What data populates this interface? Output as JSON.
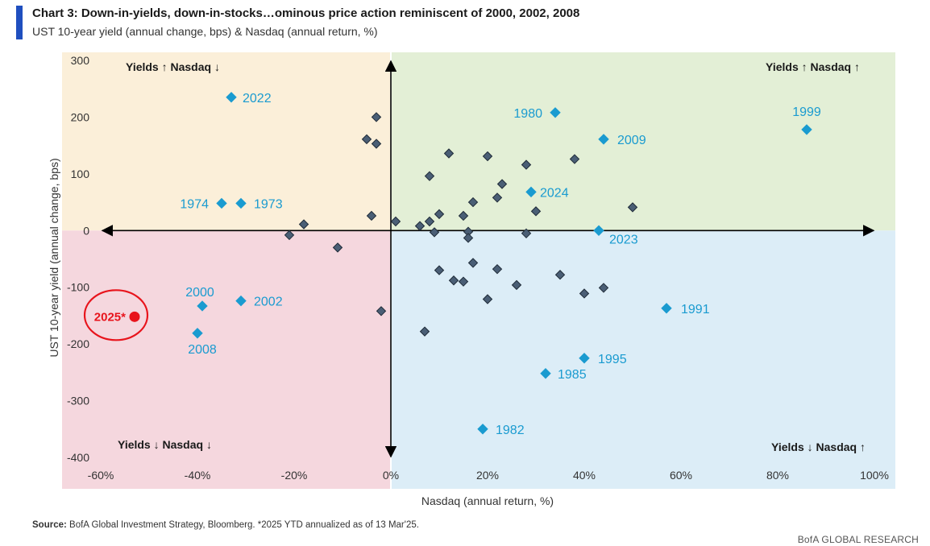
{
  "header": {
    "title": "Chart 3: Down-in-yields, down-in-stocks…ominous price action reminiscent of 2000, 2002, 2008",
    "subtitle": "UST 10-year yield (annual change, bps) & Nasdaq (annual return, %)"
  },
  "footer": {
    "source_label": "Source:",
    "source_text": " BofA Global Investment Strategy, Bloomberg. *2025 YTD annualized as of 13 Mar'25.",
    "brand": "BofA GLOBAL RESEARCH"
  },
  "colors": {
    "q_top_left": "#fbefd9",
    "q_top_right": "#e3efd6",
    "q_bottom_left": "#f5d7de",
    "q_bottom_right": "#dcedf7",
    "labeled_point": "#1a9bd0",
    "unlabeled_point": "#4a5e75",
    "highlight": "#e8141c",
    "axis": "#000000"
  },
  "chart_data": {
    "type": "scatter",
    "title": "Chart 3: Down-in-yields, down-in-stocks…ominous price action reminiscent of 2000, 2002, 2008",
    "xlabel": "Nasdaq (annual return, %)",
    "ylabel": "UST 10-year yield (annual change, bps)",
    "xlim": [
      -60,
      100
    ],
    "ylim": [
      -400,
      300
    ],
    "x_ticks": [
      -60,
      -40,
      -20,
      0,
      20,
      40,
      60,
      80,
      100
    ],
    "x_tick_labels": [
      "-60%",
      "-40%",
      "-20%",
      "0%",
      "20%",
      "40%",
      "60%",
      "80%",
      "100%"
    ],
    "y_ticks": [
      300,
      200,
      100,
      0,
      -100,
      -200,
      -300,
      -400
    ],
    "y_tick_labels": [
      "300",
      "200",
      "100",
      "0",
      "-100",
      "-200",
      "-300",
      "-400"
    ],
    "quadrant_labels": {
      "top_left": "Yields ↑ Nasdaq ↓",
      "top_right": "Yields ↑ Nasdaq ↑",
      "bottom_left": "Yields ↓ Nasdaq ↓",
      "bottom_right": "Yields ↓ Nasdaq ↑"
    },
    "labeled_points": [
      {
        "label": "2022",
        "x": -33,
        "y": 235
      },
      {
        "label": "1974",
        "x": -35,
        "y": 48
      },
      {
        "label": "1973",
        "x": -31,
        "y": 48
      },
      {
        "label": "2000",
        "x": -39,
        "y": -133
      },
      {
        "label": "2002",
        "x": -31,
        "y": -124
      },
      {
        "label": "2008",
        "x": -40,
        "y": -181
      },
      {
        "label": "1980",
        "x": 34,
        "y": 208
      },
      {
        "label": "2009",
        "x": 44,
        "y": 161
      },
      {
        "label": "1999",
        "x": 86,
        "y": 178
      },
      {
        "label": "2024",
        "x": 29,
        "y": 68
      },
      {
        "label": "2023",
        "x": 43,
        "y": 0
      },
      {
        "label": "1991",
        "x": 57,
        "y": -137
      },
      {
        "label": "1995",
        "x": 40,
        "y": -225
      },
      {
        "label": "1985",
        "x": 32,
        "y": -252
      },
      {
        "label": "1982",
        "x": 19,
        "y": -350
      }
    ],
    "highlight_point": {
      "label": "2025*",
      "x": -53,
      "y": -152
    },
    "unlabeled_points": [
      {
        "x": -3,
        "y": 200
      },
      {
        "x": -5,
        "y": 161
      },
      {
        "x": -3,
        "y": 153
      },
      {
        "x": -4,
        "y": 26
      },
      {
        "x": -18,
        "y": 11
      },
      {
        "x": -21,
        "y": -8
      },
      {
        "x": -11,
        "y": -30
      },
      {
        "x": -2,
        "y": -142
      },
      {
        "x": 1,
        "y": 16
      },
      {
        "x": 6,
        "y": 8
      },
      {
        "x": 8,
        "y": 16
      },
      {
        "x": 10,
        "y": 29
      },
      {
        "x": 8,
        "y": 96
      },
      {
        "x": 12,
        "y": 136
      },
      {
        "x": 20,
        "y": 131
      },
      {
        "x": 28,
        "y": 116
      },
      {
        "x": 38,
        "y": 126
      },
      {
        "x": 23,
        "y": 82
      },
      {
        "x": 22,
        "y": 58
      },
      {
        "x": 17,
        "y": 50
      },
      {
        "x": 15,
        "y": 26
      },
      {
        "x": 30,
        "y": 34
      },
      {
        "x": 50,
        "y": 41
      },
      {
        "x": 9,
        "y": -3
      },
      {
        "x": 16,
        "y": -2
      },
      {
        "x": 16,
        "y": -13
      },
      {
        "x": 28,
        "y": -5
      },
      {
        "x": 10,
        "y": -70
      },
      {
        "x": 17,
        "y": -57
      },
      {
        "x": 22,
        "y": -68
      },
      {
        "x": 13,
        "y": -88
      },
      {
        "x": 15,
        "y": -90
      },
      {
        "x": 26,
        "y": -96
      },
      {
        "x": 35,
        "y": -78
      },
      {
        "x": 44,
        "y": -101
      },
      {
        "x": 40,
        "y": -111
      },
      {
        "x": 20,
        "y": -121
      },
      {
        "x": 7,
        "y": -178
      }
    ]
  }
}
